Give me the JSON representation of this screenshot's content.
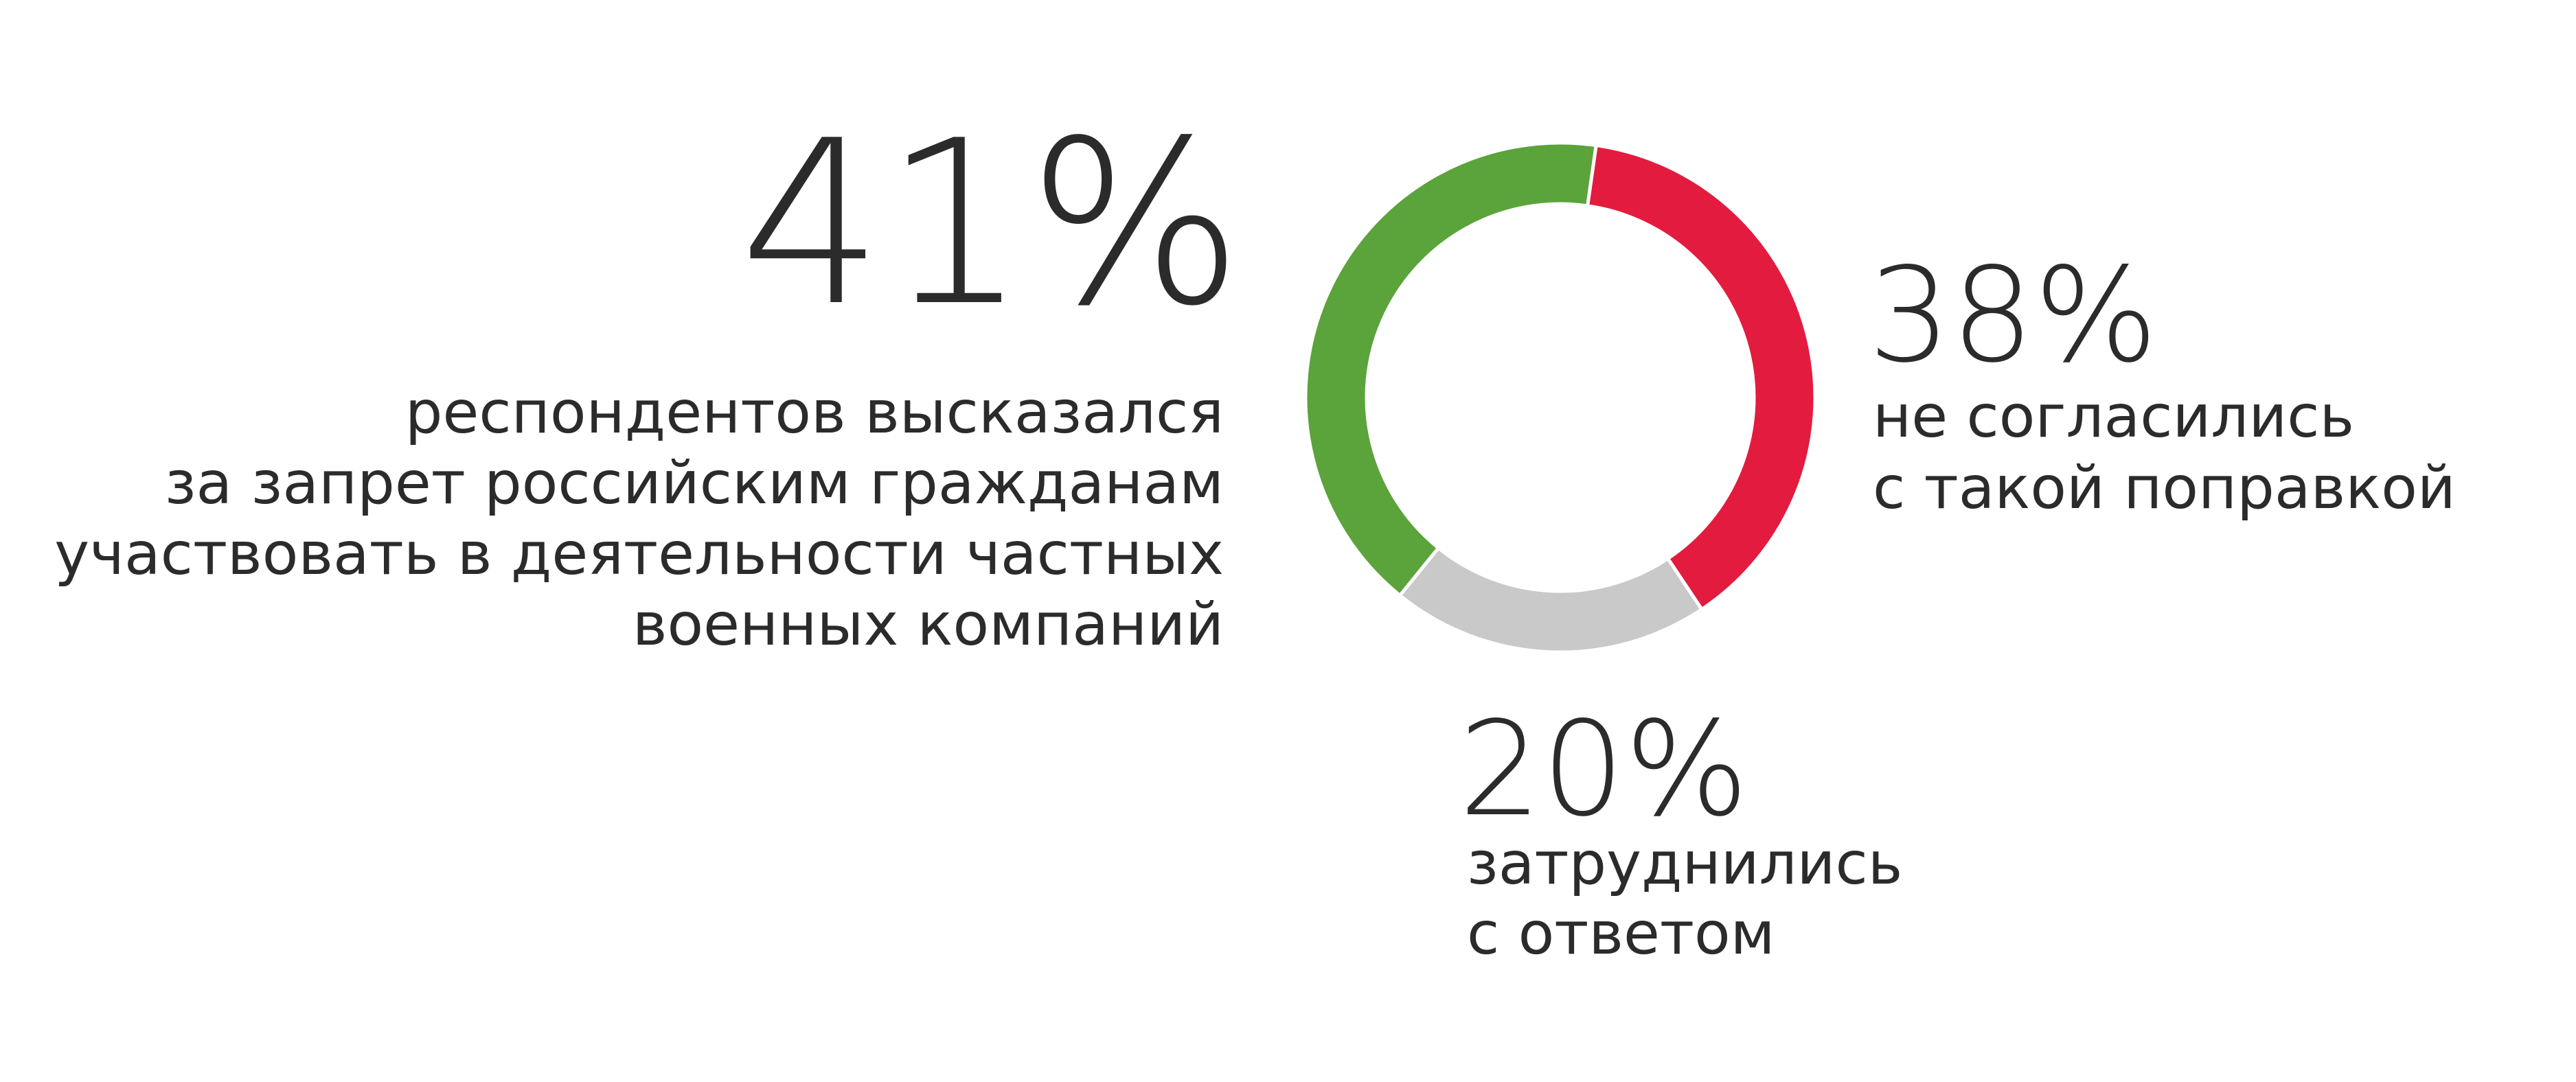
{
  "chart_data": {
    "type": "donut",
    "categories": [
      [
        "респондентов высказался",
        "за запрет российским гражданам",
        "участвовать в деятельности частных",
        "военных компаний"
      ],
      [
        "не согласились",
        "с такой поправкой"
      ],
      [
        "затруднились",
        "с ответом"
      ]
    ],
    "values": [
      41,
      38,
      20
    ],
    "value_labels": [
      "41%",
      "38%",
      "20%"
    ],
    "colors": [
      "#5ba33b",
      "#e31b3f",
      "#c8c9c8"
    ]
  }
}
